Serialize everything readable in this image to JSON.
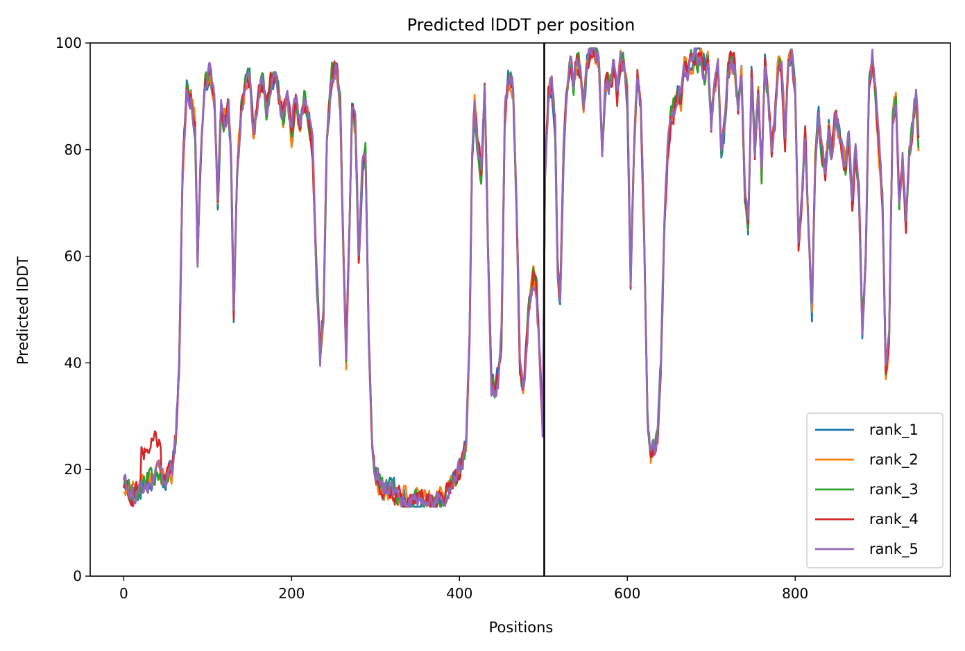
{
  "chart_data": {
    "type": "line",
    "title": "Predicted lDDT per position",
    "xlabel": "Positions",
    "ylabel": "Predicted lDDT",
    "xlim": [
      -40,
      985
    ],
    "ylim": [
      0,
      100
    ],
    "xticks": [
      0,
      200,
      400,
      600,
      800
    ],
    "yticks": [
      0,
      20,
      40,
      60,
      80,
      100
    ],
    "grid": false,
    "legend_position": "bottom-right",
    "vline_x": 501,
    "vline_color": "#000000",
    "series": [
      {
        "name": "rank_1",
        "color": "#1f77b4"
      },
      {
        "name": "rank_2",
        "color": "#ff7f0e"
      },
      {
        "name": "rank_3",
        "color": "#2ca02c"
      },
      {
        "name": "rank_4",
        "color": "#d62728"
      },
      {
        "name": "rank_5",
        "color": "#9467bd"
      }
    ],
    "profile": [
      [
        0,
        17
      ],
      [
        8,
        15
      ],
      [
        15,
        16
      ],
      [
        22,
        17
      ],
      [
        30,
        18
      ],
      [
        40,
        19
      ],
      [
        50,
        18
      ],
      [
        58,
        20
      ],
      [
        62,
        26
      ],
      [
        66,
        40
      ],
      [
        70,
        75
      ],
      [
        75,
        92
      ],
      [
        80,
        90
      ],
      [
        85,
        85
      ],
      [
        88,
        60
      ],
      [
        92,
        80
      ],
      [
        97,
        92
      ],
      [
        103,
        95
      ],
      [
        108,
        90
      ],
      [
        112,
        70
      ],
      [
        116,
        88
      ],
      [
        120,
        85
      ],
      [
        125,
        88
      ],
      [
        128,
        78
      ],
      [
        131,
        50
      ],
      [
        135,
        75
      ],
      [
        140,
        88
      ],
      [
        145,
        92
      ],
      [
        150,
        94
      ],
      [
        155,
        82
      ],
      [
        160,
        90
      ],
      [
        165,
        93
      ],
      [
        170,
        88
      ],
      [
        175,
        92
      ],
      [
        180,
        94
      ],
      [
        185,
        90
      ],
      [
        190,
        86
      ],
      [
        195,
        90
      ],
      [
        200,
        82
      ],
      [
        205,
        90
      ],
      [
        210,
        85
      ],
      [
        215,
        89
      ],
      [
        220,
        86
      ],
      [
        225,
        80
      ],
      [
        230,
        55
      ],
      [
        234,
        41
      ],
      [
        238,
        50
      ],
      [
        242,
        82
      ],
      [
        248,
        94
      ],
      [
        254,
        95
      ],
      [
        258,
        88
      ],
      [
        262,
        60
      ],
      [
        265,
        40
      ],
      [
        268,
        60
      ],
      [
        272,
        88
      ],
      [
        276,
        84
      ],
      [
        280,
        60
      ],
      [
        284,
        75
      ],
      [
        288,
        80
      ],
      [
        292,
        45
      ],
      [
        296,
        25
      ],
      [
        300,
        19
      ],
      [
        310,
        16
      ],
      [
        320,
        16
      ],
      [
        330,
        15
      ],
      [
        340,
        14
      ],
      [
        350,
        15
      ],
      [
        360,
        15
      ],
      [
        370,
        14
      ],
      [
        380,
        15
      ],
      [
        390,
        17
      ],
      [
        400,
        20
      ],
      [
        408,
        25
      ],
      [
        412,
        45
      ],
      [
        415,
        78
      ],
      [
        418,
        88
      ],
      [
        422,
        80
      ],
      [
        426,
        76
      ],
      [
        430,
        92
      ],
      [
        434,
        62
      ],
      [
        438,
        36
      ],
      [
        442,
        34
      ],
      [
        446,
        37
      ],
      [
        450,
        45
      ],
      [
        454,
        86
      ],
      [
        458,
        93
      ],
      [
        464,
        91
      ],
      [
        468,
        70
      ],
      [
        472,
        40
      ],
      [
        476,
        35
      ],
      [
        480,
        44
      ],
      [
        484,
        52
      ],
      [
        488,
        56
      ],
      [
        492,
        53
      ],
      [
        496,
        40
      ],
      [
        499,
        27
      ],
      [
        502,
        74
      ],
      [
        506,
        90
      ],
      [
        510,
        92
      ],
      [
        514,
        85
      ],
      [
        517,
        58
      ],
      [
        520,
        52
      ],
      [
        524,
        80
      ],
      [
        528,
        92
      ],
      [
        532,
        96
      ],
      [
        536,
        92
      ],
      [
        540,
        97
      ],
      [
        544,
        95
      ],
      [
        548,
        88
      ],
      [
        552,
        96
      ],
      [
        556,
        98
      ],
      [
        560,
        99
      ],
      [
        566,
        97
      ],
      [
        570,
        80
      ],
      [
        574,
        92
      ],
      [
        578,
        92
      ],
      [
        584,
        96
      ],
      [
        588,
        90
      ],
      [
        592,
        97
      ],
      [
        596,
        96
      ],
      [
        600,
        90
      ],
      [
        604,
        55
      ],
      [
        608,
        80
      ],
      [
        612,
        94
      ],
      [
        616,
        88
      ],
      [
        620,
        65
      ],
      [
        624,
        30
      ],
      [
        628,
        23
      ],
      [
        632,
        24
      ],
      [
        636,
        26
      ],
      [
        640,
        40
      ],
      [
        644,
        65
      ],
      [
        648,
        80
      ],
      [
        652,
        86
      ],
      [
        656,
        88
      ],
      [
        660,
        91
      ],
      [
        664,
        90
      ],
      [
        668,
        96
      ],
      [
        672,
        94
      ],
      [
        676,
        96
      ],
      [
        680,
        98
      ],
      [
        684,
        97
      ],
      [
        688,
        98
      ],
      [
        692,
        95
      ],
      [
        696,
        97
      ],
      [
        700,
        85
      ],
      [
        704,
        92
      ],
      [
        708,
        96
      ],
      [
        712,
        80
      ],
      [
        716,
        84
      ],
      [
        720,
        94
      ],
      [
        724,
        97
      ],
      [
        728,
        95
      ],
      [
        732,
        88
      ],
      [
        736,
        94
      ],
      [
        740,
        72
      ],
      [
        744,
        66
      ],
      [
        748,
        94
      ],
      [
        752,
        80
      ],
      [
        756,
        92
      ],
      [
        760,
        75
      ],
      [
        764,
        96
      ],
      [
        768,
        90
      ],
      [
        772,
        80
      ],
      [
        776,
        86
      ],
      [
        780,
        97
      ],
      [
        784,
        95
      ],
      [
        788,
        82
      ],
      [
        792,
        97
      ],
      [
        796,
        98
      ],
      [
        800,
        90
      ],
      [
        804,
        62
      ],
      [
        808,
        70
      ],
      [
        812,
        82
      ],
      [
        816,
        64
      ],
      [
        820,
        50
      ],
      [
        824,
        78
      ],
      [
        828,
        86
      ],
      [
        832,
        80
      ],
      [
        836,
        75
      ],
      [
        840,
        84
      ],
      [
        844,
        78
      ],
      [
        848,
        86
      ],
      [
        852,
        84
      ],
      [
        856,
        80
      ],
      [
        860,
        76
      ],
      [
        864,
        82
      ],
      [
        868,
        70
      ],
      [
        872,
        80
      ],
      [
        876,
        72
      ],
      [
        880,
        45
      ],
      [
        884,
        60
      ],
      [
        888,
        92
      ],
      [
        892,
        97
      ],
      [
        896,
        90
      ],
      [
        900,
        80
      ],
      [
        904,
        70
      ],
      [
        908,
        38
      ],
      [
        912,
        45
      ],
      [
        916,
        86
      ],
      [
        920,
        90
      ],
      [
        924,
        70
      ],
      [
        928,
        78
      ],
      [
        932,
        65
      ],
      [
        936,
        80
      ],
      [
        940,
        85
      ],
      [
        944,
        90
      ],
      [
        947,
        82
      ]
    ]
  }
}
